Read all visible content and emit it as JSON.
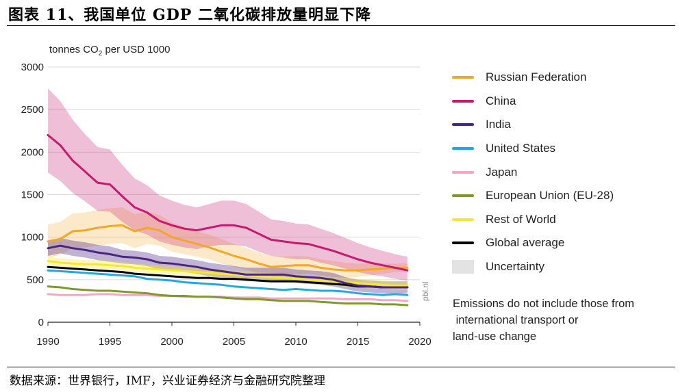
{
  "header": {
    "title": "图表 11、我国单位 GDP 二氧化碳排放量明显下降"
  },
  "footer": {
    "source": "数据来源：世界银行，IMF，兴业证券经济与金融研究院整理"
  },
  "watermark": "pbl.nl",
  "note_lines": [
    "Emissions do not include those from",
    " international transport or",
    "land-use change"
  ],
  "chart_data": {
    "type": "line",
    "title": "",
    "ylabel_prefix": "tonnes CO",
    "ylabel_sub": "2",
    "ylabel_suffix": " per USD 1000",
    "xlabel": "",
    "xlim": [
      1990,
      2020
    ],
    "ylim": [
      0,
      3000
    ],
    "x_ticks": [
      1990,
      1995,
      2000,
      2005,
      2010,
      2015,
      2020
    ],
    "y_ticks": [
      0,
      500,
      1000,
      1500,
      2000,
      2500,
      3000
    ],
    "grid": true,
    "legend_position": "right",
    "x": [
      1990,
      1991,
      1992,
      1993,
      1994,
      1995,
      1996,
      1997,
      1998,
      1999,
      2000,
      2001,
      2002,
      2003,
      2004,
      2005,
      2006,
      2007,
      2008,
      2009,
      2010,
      2011,
      2012,
      2013,
      2014,
      2015,
      2016,
      2017,
      2018,
      2019
    ],
    "series": [
      {
        "name": "Russian Federation",
        "color": "#f3a726",
        "values": [
          950,
          980,
          1070,
          1080,
          1110,
          1130,
          1140,
          1070,
          1110,
          1080,
          1000,
          960,
          920,
          880,
          830,
          780,
          740,
          690,
          650,
          660,
          670,
          670,
          640,
          620,
          610,
          610,
          620,
          630,
          640,
          640
        ],
        "band_upper": [
          1150,
          1180,
          1280,
          1290,
          1320,
          1340,
          1350,
          1270,
          1300,
          1260,
          1170,
          1120,
          1070,
          1030,
          980,
          920,
          870,
          820,
          780,
          770,
          780,
          770,
          740,
          720,
          700,
          690,
          690,
          690,
          690,
          690
        ],
        "band_lower": [
          760,
          790,
          870,
          880,
          900,
          920,
          930,
          870,
          920,
          900,
          830,
          800,
          770,
          740,
          690,
          650,
          620,
          570,
          530,
          550,
          560,
          570,
          550,
          530,
          520,
          530,
          550,
          570,
          590,
          590
        ]
      },
      {
        "name": "China",
        "color": "#c7196e",
        "values": [
          2200,
          2080,
          1900,
          1770,
          1640,
          1620,
          1480,
          1350,
          1290,
          1190,
          1140,
          1100,
          1080,
          1110,
          1140,
          1140,
          1110,
          1040,
          970,
          950,
          930,
          920,
          880,
          840,
          790,
          740,
          700,
          670,
          640,
          610
        ],
        "band_upper": [
          2750,
          2600,
          2380,
          2210,
          2060,
          2030,
          1850,
          1690,
          1610,
          1490,
          1430,
          1380,
          1350,
          1390,
          1430,
          1430,
          1390,
          1300,
          1210,
          1190,
          1160,
          1150,
          1100,
          1050,
          990,
          930,
          880,
          840,
          800,
          770
        ],
        "band_lower": [
          1760,
          1660,
          1520,
          1420,
          1310,
          1300,
          1180,
          1080,
          1030,
          950,
          910,
          880,
          860,
          890,
          910,
          910,
          890,
          830,
          780,
          760,
          740,
          740,
          700,
          670,
          630,
          590,
          560,
          540,
          510,
          490
        ]
      },
      {
        "name": "India",
        "color": "#4a2680",
        "values": [
          870,
          900,
          870,
          850,
          820,
          800,
          770,
          760,
          740,
          700,
          690,
          670,
          650,
          620,
          600,
          580,
          560,
          560,
          560,
          560,
          540,
          530,
          520,
          500,
          460,
          430,
          420,
          410,
          410,
          410
        ],
        "band_upper": [
          960,
          990,
          960,
          940,
          910,
          890,
          850,
          840,
          820,
          780,
          770,
          750,
          730,
          700,
          680,
          660,
          640,
          640,
          640,
          640,
          620,
          610,
          600,
          580,
          530,
          500,
          490,
          480,
          480,
          480
        ],
        "band_lower": [
          780,
          810,
          780,
          760,
          730,
          710,
          690,
          680,
          660,
          620,
          610,
          590,
          570,
          540,
          520,
          500,
          480,
          480,
          480,
          480,
          460,
          450,
          440,
          420,
          390,
          360,
          350,
          340,
          340,
          340
        ]
      },
      {
        "name": "United States",
        "color": "#22a8e0",
        "values": [
          610,
          600,
          590,
          580,
          570,
          560,
          550,
          540,
          510,
          500,
          490,
          470,
          460,
          450,
          440,
          420,
          410,
          400,
          390,
          380,
          390,
          380,
          370,
          370,
          360,
          340,
          330,
          320,
          330,
          320
        ]
      },
      {
        "name": "Japan",
        "color": "#f3a6c8",
        "values": [
          330,
          320,
          320,
          320,
          330,
          330,
          320,
          320,
          320,
          310,
          310,
          300,
          300,
          300,
          300,
          290,
          290,
          290,
          280,
          280,
          280,
          280,
          280,
          280,
          270,
          270,
          270,
          260,
          260,
          250
        ]
      },
      {
        "name": "European Union (EU-28)",
        "color": "#7f9a2b",
        "values": [
          420,
          410,
          390,
          380,
          370,
          370,
          360,
          350,
          340,
          320,
          310,
          310,
          300,
          300,
          290,
          280,
          270,
          270,
          260,
          250,
          250,
          250,
          240,
          230,
          220,
          220,
          220,
          210,
          210,
          200
        ]
      },
      {
        "name": "Rest of World",
        "color": "#f6e732",
        "values": [
          720,
          700,
          690,
          680,
          680,
          670,
          660,
          640,
          630,
          620,
          610,
          600,
          590,
          580,
          570,
          560,
          550,
          540,
          530,
          520,
          510,
          500,
          490,
          480,
          470,
          460,
          450,
          440,
          430,
          430
        ],
        "band_upper": [
          770,
          750,
          740,
          730,
          730,
          720,
          710,
          690,
          680,
          670,
          660,
          650,
          640,
          630,
          620,
          610,
          600,
          590,
          580,
          570,
          560,
          550,
          540,
          530,
          520,
          510,
          500,
          490,
          480,
          480
        ],
        "band_lower": [
          670,
          650,
          640,
          630,
          630,
          620,
          610,
          590,
          580,
          570,
          560,
          550,
          540,
          530,
          520,
          510,
          500,
          490,
          480,
          470,
          460,
          450,
          440,
          430,
          420,
          410,
          400,
          390,
          380,
          380
        ]
      },
      {
        "name": "Global average",
        "color": "#000000",
        "values": [
          650,
          640,
          630,
          620,
          610,
          600,
          590,
          570,
          560,
          550,
          540,
          530,
          520,
          520,
          510,
          510,
          500,
          490,
          480,
          480,
          480,
          470,
          460,
          450,
          440,
          420,
          420,
          410,
          410,
          410
        ]
      }
    ],
    "legend_extra": {
      "name": "Uncertainty",
      "color": "#e3e3e3"
    }
  }
}
